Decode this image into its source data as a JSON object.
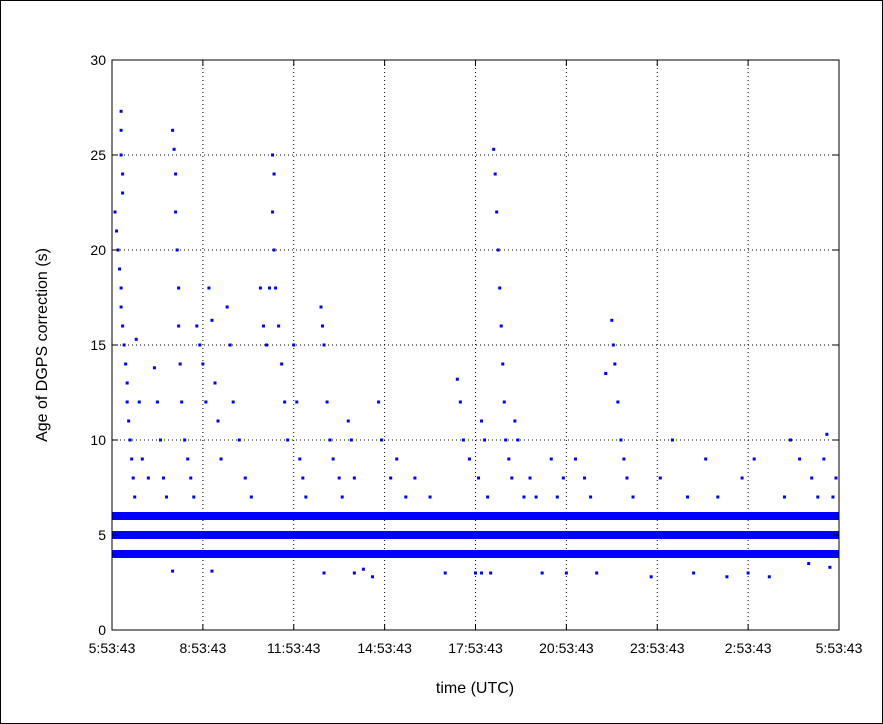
{
  "chart_data": {
    "type": "scatter",
    "title": "",
    "xlabel": "time (UTC)",
    "ylabel": "Age of DGPS correction (s)",
    "x_tick_labels": [
      "5:53:43",
      "8:53:43",
      "11:53:43",
      "14:53:43",
      "17:53:43",
      "20:53:43",
      "23:53:43",
      "2:53:43",
      "5:53:43"
    ],
    "x_hours_per_tick": 3,
    "xlim_hours": [
      0,
      24
    ],
    "ylim": [
      0,
      30
    ],
    "y_ticks": [
      0,
      5,
      10,
      15,
      20,
      25,
      30
    ],
    "grid": "dotted",
    "marker_color": "#0000ff",
    "series": [
      {
        "bands": [
          {
            "y": 6,
            "x_range_hours": [
              0,
              24
            ],
            "coverage": "near-continuous"
          },
          {
            "y": 5,
            "x_range_hours": [
              0,
              24
            ],
            "coverage": "continuous"
          },
          {
            "y": 4,
            "x_range_hours": [
              0,
              24
            ],
            "coverage": "near-continuous"
          }
        ],
        "points": [
          [
            0.1,
            22
          ],
          [
            0.15,
            21
          ],
          [
            0.2,
            20
          ],
          [
            0.25,
            19
          ],
          [
            0.3,
            27.3
          ],
          [
            0.3,
            26.3
          ],
          [
            0.3,
            25
          ],
          [
            0.35,
            24
          ],
          [
            0.35,
            23
          ],
          [
            0.3,
            18
          ],
          [
            0.3,
            17
          ],
          [
            0.35,
            16
          ],
          [
            0.4,
            15
          ],
          [
            0.45,
            14
          ],
          [
            0.5,
            13
          ],
          [
            0.5,
            12
          ],
          [
            0.55,
            11
          ],
          [
            0.6,
            10
          ],
          [
            0.65,
            9
          ],
          [
            0.7,
            8
          ],
          [
            0.75,
            7
          ],
          [
            0.8,
            15.3
          ],
          [
            0.9,
            12
          ],
          [
            1.0,
            9
          ],
          [
            1.2,
            8
          ],
          [
            1.4,
            13.8
          ],
          [
            1.5,
            12
          ],
          [
            1.6,
            10
          ],
          [
            1.7,
            8
          ],
          [
            1.8,
            7
          ],
          [
            2.0,
            3.1
          ],
          [
            2.0,
            26.3
          ],
          [
            2.05,
            25.3
          ],
          [
            2.1,
            24
          ],
          [
            2.1,
            22
          ],
          [
            2.15,
            20
          ],
          [
            2.2,
            18
          ],
          [
            2.2,
            16
          ],
          [
            2.25,
            14
          ],
          [
            2.3,
            12
          ],
          [
            2.4,
            10
          ],
          [
            2.5,
            9
          ],
          [
            2.6,
            8
          ],
          [
            2.7,
            7
          ],
          [
            2.8,
            16
          ],
          [
            2.9,
            15
          ],
          [
            3.0,
            14
          ],
          [
            3.1,
            12
          ],
          [
            3.2,
            18
          ],
          [
            3.3,
            16.3
          ],
          [
            3.4,
            13
          ],
          [
            3.5,
            11
          ],
          [
            3.3,
            3.1
          ],
          [
            3.6,
            9
          ],
          [
            3.8,
            17
          ],
          [
            3.9,
            15
          ],
          [
            4.0,
            12
          ],
          [
            4.2,
            10
          ],
          [
            4.4,
            8
          ],
          [
            4.6,
            7
          ],
          [
            4.9,
            18
          ],
          [
            5.0,
            16
          ],
          [
            5.1,
            15
          ],
          [
            5.2,
            18
          ],
          [
            5.3,
            25
          ],
          [
            5.35,
            24
          ],
          [
            5.3,
            22
          ],
          [
            5.35,
            20
          ],
          [
            5.4,
            18
          ],
          [
            5.5,
            16
          ],
          [
            5.6,
            14
          ],
          [
            5.7,
            12
          ],
          [
            5.8,
            10
          ],
          [
            6.0,
            15
          ],
          [
            6.1,
            12
          ],
          [
            6.2,
            9
          ],
          [
            6.3,
            8
          ],
          [
            6.4,
            7
          ],
          [
            6.9,
            17
          ],
          [
            6.95,
            16
          ],
          [
            7.0,
            15
          ],
          [
            7.1,
            12
          ],
          [
            7.2,
            10
          ],
          [
            7.0,
            3
          ],
          [
            7.3,
            9
          ],
          [
            7.5,
            8
          ],
          [
            7.6,
            7
          ],
          [
            7.8,
            11
          ],
          [
            7.9,
            10
          ],
          [
            8.0,
            8
          ],
          [
            8.0,
            3
          ],
          [
            8.3,
            3.2
          ],
          [
            8.6,
            2.8
          ],
          [
            8.8,
            12
          ],
          [
            8.9,
            10
          ],
          [
            9.2,
            8
          ],
          [
            9.4,
            9
          ],
          [
            9.7,
            7
          ],
          [
            10.0,
            8
          ],
          [
            10.5,
            7
          ],
          [
            11.0,
            3
          ],
          [
            11.4,
            13.2
          ],
          [
            11.5,
            12
          ],
          [
            11.6,
            10
          ],
          [
            11.8,
            9
          ],
          [
            12.0,
            3
          ],
          [
            12.1,
            8
          ],
          [
            12.2,
            11
          ],
          [
            12.3,
            10
          ],
          [
            12.4,
            7
          ],
          [
            12.2,
            3
          ],
          [
            12.5,
            3
          ],
          [
            12.6,
            25.3
          ],
          [
            12.65,
            24
          ],
          [
            12.7,
            22
          ],
          [
            12.75,
            20
          ],
          [
            12.8,
            18
          ],
          [
            12.85,
            16
          ],
          [
            12.9,
            14
          ],
          [
            12.95,
            12
          ],
          [
            13.0,
            10
          ],
          [
            13.1,
            9
          ],
          [
            13.2,
            8
          ],
          [
            13.3,
            11
          ],
          [
            13.4,
            10
          ],
          [
            13.6,
            7
          ],
          [
            13.8,
            8
          ],
          [
            14.0,
            7
          ],
          [
            14.2,
            3
          ],
          [
            14.5,
            9
          ],
          [
            14.7,
            7
          ],
          [
            14.9,
            8
          ],
          [
            15.0,
            3
          ],
          [
            15.3,
            9
          ],
          [
            15.6,
            8
          ],
          [
            15.8,
            7
          ],
          [
            16.0,
            3
          ],
          [
            16.3,
            13.5
          ],
          [
            16.5,
            16.3
          ],
          [
            16.55,
            15
          ],
          [
            16.6,
            14
          ],
          [
            16.7,
            12
          ],
          [
            16.8,
            10
          ],
          [
            16.9,
            9
          ],
          [
            17.0,
            8
          ],
          [
            17.2,
            7
          ],
          [
            17.8,
            2.8
          ],
          [
            18.1,
            8
          ],
          [
            18.5,
            10
          ],
          [
            19.0,
            7
          ],
          [
            19.2,
            3
          ],
          [
            19.6,
            9
          ],
          [
            20.0,
            7
          ],
          [
            20.3,
            2.8
          ],
          [
            20.8,
            8
          ],
          [
            21.0,
            3
          ],
          [
            21.2,
            9
          ],
          [
            21.7,
            2.8
          ],
          [
            22.2,
            7
          ],
          [
            22.4,
            10
          ],
          [
            22.7,
            9
          ],
          [
            23.0,
            3.5
          ],
          [
            23.1,
            8
          ],
          [
            23.3,
            7
          ],
          [
            23.5,
            9
          ],
          [
            23.6,
            10.3
          ],
          [
            23.8,
            7
          ],
          [
            23.9,
            8
          ],
          [
            23.7,
            3.3
          ]
        ]
      }
    ]
  }
}
